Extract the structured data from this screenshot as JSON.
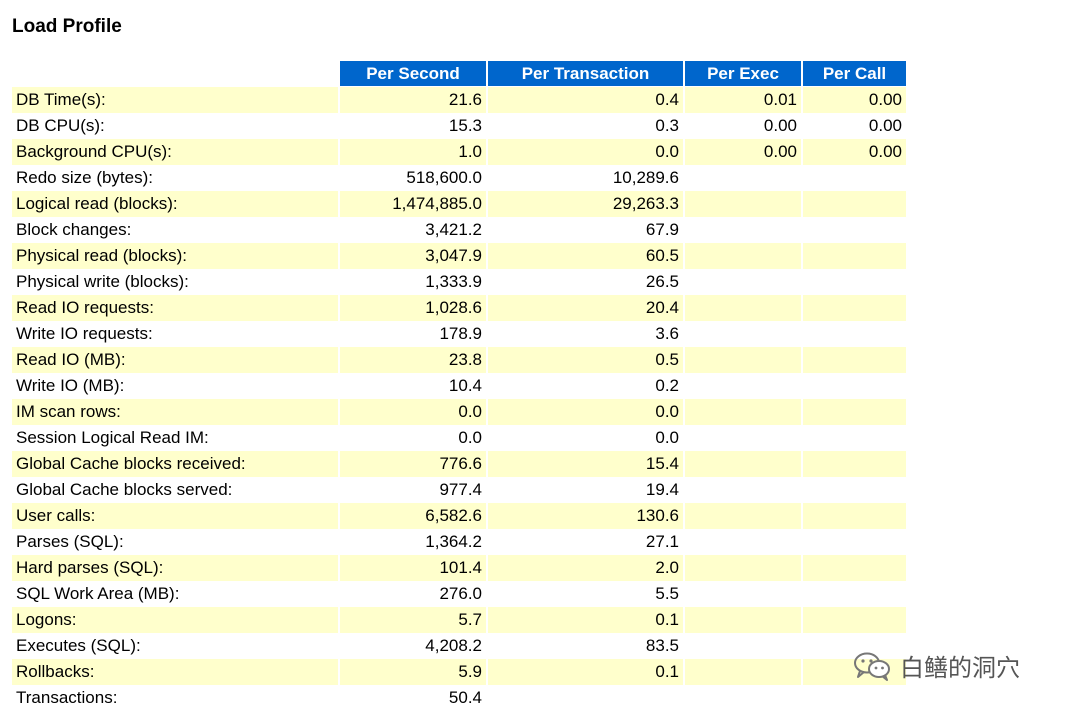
{
  "title": "Load Profile",
  "columns": [
    "Per Second",
    "Per Transaction",
    "Per Exec",
    "Per Call"
  ],
  "rows": [
    {
      "stat": "DB Time(s):",
      "per_second": "21.6",
      "per_transaction": "0.4",
      "per_exec": "0.01",
      "per_call": "0.00"
    },
    {
      "stat": "DB CPU(s):",
      "per_second": "15.3",
      "per_transaction": "0.3",
      "per_exec": "0.00",
      "per_call": "0.00"
    },
    {
      "stat": "Background CPU(s):",
      "per_second": "1.0",
      "per_transaction": "0.0",
      "per_exec": "0.00",
      "per_call": "0.00"
    },
    {
      "stat": "Redo size (bytes):",
      "per_second": "518,600.0",
      "per_transaction": "10,289.6",
      "per_exec": "",
      "per_call": ""
    },
    {
      "stat": "Logical read (blocks):",
      "per_second": "1,474,885.0",
      "per_transaction": "29,263.3",
      "per_exec": "",
      "per_call": ""
    },
    {
      "stat": "Block changes:",
      "per_second": "3,421.2",
      "per_transaction": "67.9",
      "per_exec": "",
      "per_call": ""
    },
    {
      "stat": "Physical read (blocks):",
      "per_second": "3,047.9",
      "per_transaction": "60.5",
      "per_exec": "",
      "per_call": ""
    },
    {
      "stat": "Physical write (blocks):",
      "per_second": "1,333.9",
      "per_transaction": "26.5",
      "per_exec": "",
      "per_call": ""
    },
    {
      "stat": "Read IO requests:",
      "per_second": "1,028.6",
      "per_transaction": "20.4",
      "per_exec": "",
      "per_call": ""
    },
    {
      "stat": "Write IO requests:",
      "per_second": "178.9",
      "per_transaction": "3.6",
      "per_exec": "",
      "per_call": ""
    },
    {
      "stat": "Read IO (MB):",
      "per_second": "23.8",
      "per_transaction": "0.5",
      "per_exec": "",
      "per_call": ""
    },
    {
      "stat": "Write IO (MB):",
      "per_second": "10.4",
      "per_transaction": "0.2",
      "per_exec": "",
      "per_call": ""
    },
    {
      "stat": "IM scan rows:",
      "per_second": "0.0",
      "per_transaction": "0.0",
      "per_exec": "",
      "per_call": ""
    },
    {
      "stat": "Session Logical Read IM:",
      "per_second": "0.0",
      "per_transaction": "0.0",
      "per_exec": "",
      "per_call": ""
    },
    {
      "stat": "Global Cache blocks received:",
      "per_second": "776.6",
      "per_transaction": "15.4",
      "per_exec": "",
      "per_call": ""
    },
    {
      "stat": "Global Cache blocks served:",
      "per_second": "977.4",
      "per_transaction": "19.4",
      "per_exec": "",
      "per_call": ""
    },
    {
      "stat": "User calls:",
      "per_second": "6,582.6",
      "per_transaction": "130.6",
      "per_exec": "",
      "per_call": ""
    },
    {
      "stat": "Parses (SQL):",
      "per_second": "1,364.2",
      "per_transaction": "27.1",
      "per_exec": "",
      "per_call": ""
    },
    {
      "stat": "Hard parses (SQL):",
      "per_second": "101.4",
      "per_transaction": "2.0",
      "per_exec": "",
      "per_call": ""
    },
    {
      "stat": "SQL Work Area (MB):",
      "per_second": "276.0",
      "per_transaction": "5.5",
      "per_exec": "",
      "per_call": ""
    },
    {
      "stat": "Logons:",
      "per_second": "5.7",
      "per_transaction": "0.1",
      "per_exec": "",
      "per_call": ""
    },
    {
      "stat": "Executes (SQL):",
      "per_second": "4,208.2",
      "per_transaction": "83.5",
      "per_exec": "",
      "per_call": ""
    },
    {
      "stat": "Rollbacks:",
      "per_second": "5.9",
      "per_transaction": "0.1",
      "per_exec": "",
      "per_call": ""
    },
    {
      "stat": "Transactions:",
      "per_second": "50.4",
      "per_transaction": "",
      "per_exec": "",
      "per_call": ""
    }
  ],
  "colors": {
    "header_bg": "#0066cc",
    "header_text": "#ffffff",
    "alt_row_bg": "#ffffcc"
  },
  "watermark": {
    "icon": "wechat-icon",
    "text": "白鳝的洞穴"
  }
}
